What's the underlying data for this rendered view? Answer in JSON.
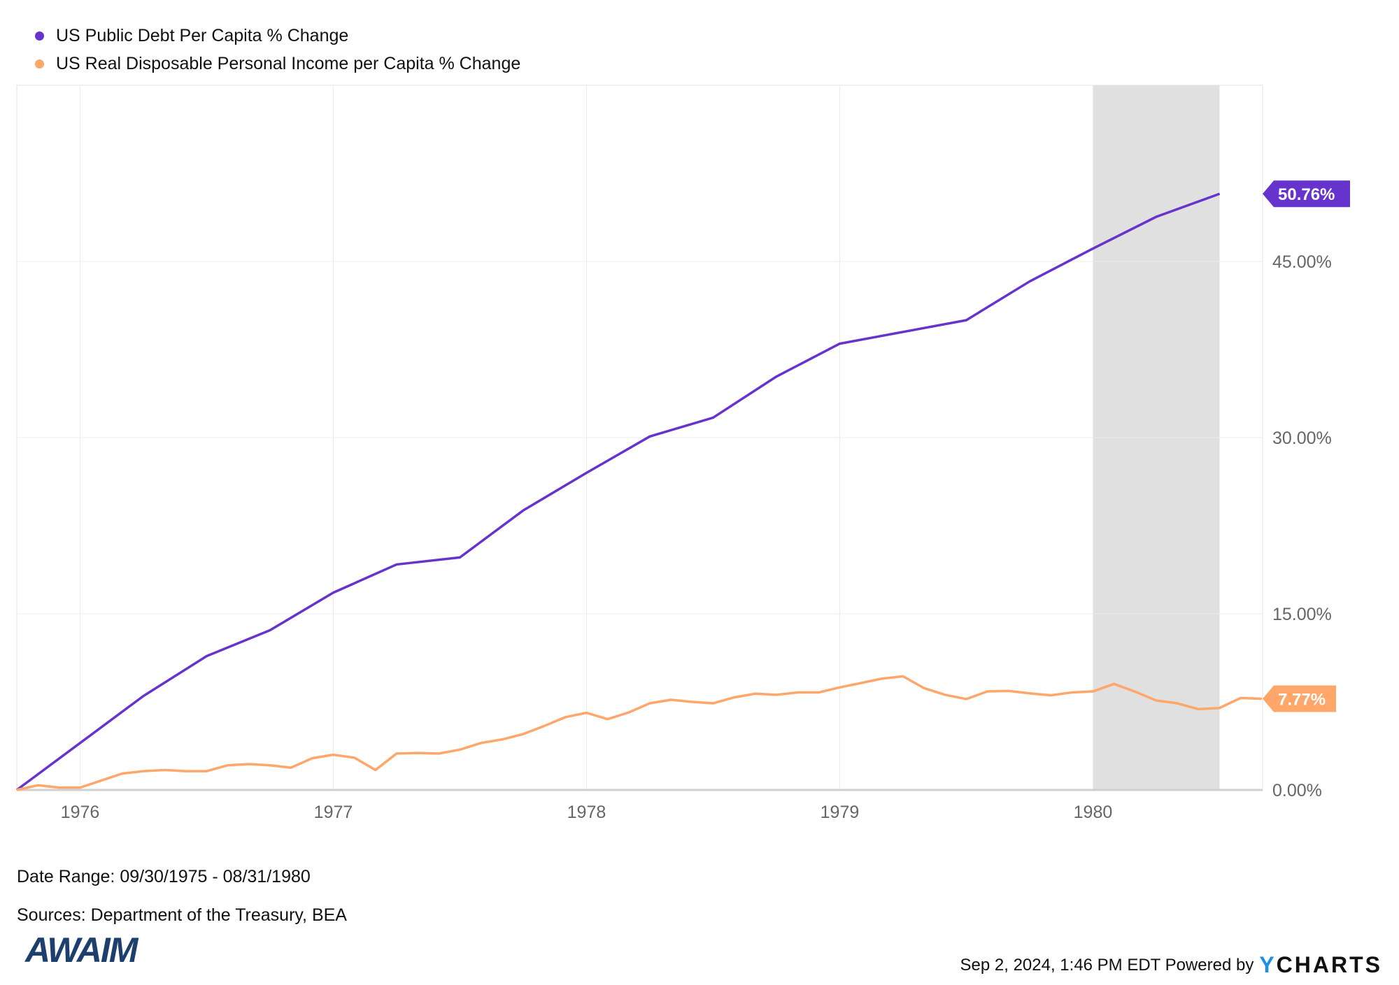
{
  "legend": [
    {
      "label": "US Public Debt Per Capita % Change",
      "color": "#6633cc"
    },
    {
      "label": "US Real Disposable Personal Income per Capita % Change",
      "color": "#ffa66b"
    }
  ],
  "meta": {
    "date_range": "Date Range: 09/30/1975 - 08/31/1980",
    "sources": "Sources: Department of the Treasury, BEA",
    "timestamp": "Sep 2, 2024, 1:46 PM EDT Powered by",
    "brand_y": "Y",
    "brand_rest": "CHARTS",
    "logo": "AWAIM"
  },
  "chart_data": {
    "type": "line",
    "xlim": [
      1975.75,
      1980.67
    ],
    "ylim": [
      0,
      60
    ],
    "x_ticks": [
      {
        "v": 1976,
        "label": "1976"
      },
      {
        "v": 1977,
        "label": "1977"
      },
      {
        "v": 1978,
        "label": "1978"
      },
      {
        "v": 1979,
        "label": "1979"
      },
      {
        "v": 1980,
        "label": "1980"
      }
    ],
    "y_ticks": [
      {
        "v": 0,
        "label": "0.00%"
      },
      {
        "v": 15,
        "label": "15.00%"
      },
      {
        "v": 30,
        "label": "30.00%"
      },
      {
        "v": 45,
        "label": "45.00%"
      }
    ],
    "recession_shading": [
      1980.0,
      1980.5
    ],
    "series": [
      {
        "name": "US Public Debt Per Capita % Change",
        "color": "#6633cc",
        "start": 1975.75,
        "step": 0.25,
        "last_label": "50.76%",
        "values": [
          0,
          4.0,
          8.0,
          11.4,
          13.6,
          16.8,
          19.2,
          19.8,
          23.8,
          27.0,
          30.1,
          31.7,
          35.2,
          38.0,
          39.0,
          40.0,
          43.3,
          46.1,
          48.8,
          50.76
        ]
      },
      {
        "name": "US Real Disposable Personal Income per Capita % Change",
        "color": "#ffa66b",
        "start": 1975.75,
        "step": 0.08333,
        "last_label": "7.77%",
        "values": [
          0,
          0.4,
          0.2,
          0.2,
          0.8,
          1.4,
          1.6,
          1.7,
          1.6,
          1.6,
          2.1,
          2.2,
          2.1,
          1.9,
          2.7,
          3.0,
          2.75,
          1.7,
          3.1,
          3.15,
          3.1,
          3.43,
          4.0,
          4.3,
          4.76,
          5.45,
          6.2,
          6.57,
          6.03,
          6.6,
          7.38,
          7.68,
          7.5,
          7.38,
          7.88,
          8.2,
          8.1,
          8.3,
          8.3,
          8.73,
          9.1,
          9.48,
          9.68,
          8.67,
          8.1,
          7.74,
          8.39,
          8.43,
          8.23,
          8.06,
          8.3,
          8.39,
          9.03,
          8.37,
          7.62,
          7.38,
          6.88,
          6.98,
          7.83,
          7.77
        ]
      }
    ]
  }
}
